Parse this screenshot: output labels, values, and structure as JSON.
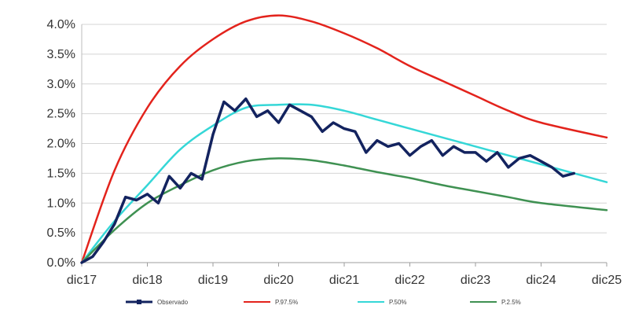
{
  "chart_data": {
    "type": "line",
    "title": "",
    "xlabel": "",
    "ylabel": "",
    "x_ticks": [
      "dic17",
      "dic18",
      "dic19",
      "dic20",
      "dic21",
      "dic22",
      "dic23",
      "dic24",
      "dic25"
    ],
    "x_range": [
      "dic17",
      "dic25"
    ],
    "y_ticks": [
      "0.0%",
      "0.5%",
      "1.0%",
      "1.5%",
      "2.0%",
      "2.5%",
      "3.0%",
      "3.5%",
      "4.0%"
    ],
    "ylim": [
      0,
      4.0
    ],
    "grid": "horizontal",
    "legend": "bottom",
    "series": [
      {
        "name": "Observado",
        "color": "#13235f",
        "marker": "square",
        "points": [
          [
            "dic17",
            0.0
          ],
          [
            "feb18",
            0.1
          ],
          [
            "abr18",
            0.35
          ],
          [
            "jun18",
            0.65
          ],
          [
            "ago18",
            1.1
          ],
          [
            "oct18",
            1.05
          ],
          [
            "dic18",
            1.15
          ],
          [
            "feb19",
            1.0
          ],
          [
            "abr19",
            1.45
          ],
          [
            "jun19",
            1.25
          ],
          [
            "ago19",
            1.5
          ],
          [
            "oct19",
            1.4
          ],
          [
            "dic19",
            2.15
          ],
          [
            "feb20",
            2.7
          ],
          [
            "abr20",
            2.55
          ],
          [
            "jun20",
            2.75
          ],
          [
            "ago20",
            2.45
          ],
          [
            "oct20",
            2.55
          ],
          [
            "dic20",
            2.35
          ],
          [
            "feb21",
            2.65
          ],
          [
            "abr21",
            2.55
          ],
          [
            "jun21",
            2.45
          ],
          [
            "ago21",
            2.2
          ],
          [
            "oct21",
            2.35
          ],
          [
            "dic21",
            2.25
          ],
          [
            "feb22",
            2.2
          ],
          [
            "abr22",
            1.85
          ],
          [
            "jun22",
            2.05
          ],
          [
            "ago22",
            1.95
          ],
          [
            "oct22",
            2.0
          ],
          [
            "dic22",
            1.8
          ],
          [
            "feb23",
            1.95
          ],
          [
            "abr23",
            2.05
          ],
          [
            "jun23",
            1.8
          ],
          [
            "ago23",
            1.95
          ],
          [
            "oct23",
            1.85
          ],
          [
            "dic23",
            1.85
          ],
          [
            "feb24",
            1.7
          ],
          [
            "abr24",
            1.85
          ],
          [
            "jun24",
            1.6
          ],
          [
            "ago24",
            1.75
          ],
          [
            "oct24",
            1.8
          ],
          [
            "dic24",
            1.7
          ],
          [
            "feb25",
            1.6
          ],
          [
            "abr25",
            1.45
          ],
          [
            "jun25",
            1.5
          ]
        ]
      },
      {
        "name": "P.97.5%",
        "color": "#e3231c",
        "points": [
          [
            "dic17",
            0.0
          ],
          [
            "jun18",
            1.55
          ],
          [
            "dic18",
            2.6
          ],
          [
            "jun19",
            3.3
          ],
          [
            "dic19",
            3.75
          ],
          [
            "jun20",
            4.05
          ],
          [
            "dic20",
            4.15
          ],
          [
            "jun21",
            4.05
          ],
          [
            "dic21",
            3.85
          ],
          [
            "jun22",
            3.6
          ],
          [
            "dic22",
            3.3
          ],
          [
            "jun23",
            3.05
          ],
          [
            "dic23",
            2.8
          ],
          [
            "jun24",
            2.55
          ],
          [
            "dic24",
            2.35
          ],
          [
            "dic25",
            2.1
          ]
        ]
      },
      {
        "name": "P.50%",
        "color": "#35d7d7",
        "points": [
          [
            "dic17",
            0.0
          ],
          [
            "jun18",
            0.7
          ],
          [
            "dic18",
            1.3
          ],
          [
            "jun19",
            1.9
          ],
          [
            "dic19",
            2.3
          ],
          [
            "jun20",
            2.6
          ],
          [
            "dic20",
            2.65
          ],
          [
            "jun21",
            2.65
          ],
          [
            "dic21",
            2.55
          ],
          [
            "jun22",
            2.4
          ],
          [
            "dic22",
            2.25
          ],
          [
            "jun23",
            2.1
          ],
          [
            "dic23",
            1.95
          ],
          [
            "jun24",
            1.8
          ],
          [
            "dic24",
            1.65
          ],
          [
            "dic25",
            1.35
          ]
        ]
      },
      {
        "name": "P.2.5%",
        "color": "#3f9152",
        "points": [
          [
            "dic17",
            0.0
          ],
          [
            "jun18",
            0.55
          ],
          [
            "dic18",
            1.0
          ],
          [
            "jun19",
            1.3
          ],
          [
            "dic19",
            1.55
          ],
          [
            "jun20",
            1.7
          ],
          [
            "dic20",
            1.75
          ],
          [
            "jun21",
            1.72
          ],
          [
            "dic21",
            1.63
          ],
          [
            "jun22",
            1.52
          ],
          [
            "dic22",
            1.42
          ],
          [
            "jun23",
            1.3
          ],
          [
            "dic23",
            1.2
          ],
          [
            "jun24",
            1.1
          ],
          [
            "dic24",
            1.0
          ],
          [
            "dic25",
            0.88
          ]
        ]
      }
    ]
  }
}
